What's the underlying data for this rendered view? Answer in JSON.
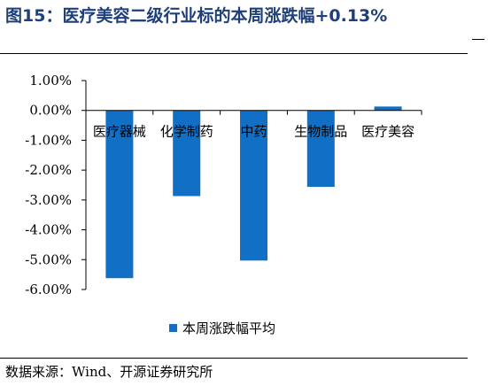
{
  "header": {
    "title": "图15：医疗美容二级行业标的本周涨跌幅+0.13%"
  },
  "footer": {
    "source": "数据来源：Wind、开源证券研究所"
  },
  "chart_data": {
    "type": "bar",
    "categories": [
      "医疗器械",
      "化学制药",
      "中药",
      "生物制品",
      "医疗美容"
    ],
    "series": [
      {
        "name": "本周涨跌幅平均",
        "values": [
          -5.62,
          -2.87,
          -5.03,
          -2.56,
          0.13
        ]
      }
    ],
    "ylim": [
      -6.0,
      1.0
    ],
    "yticks": [
      "1.00%",
      "0.00%",
      "-1.00%",
      "-2.00%",
      "-3.00%",
      "-4.00%",
      "-5.00%",
      "-6.00%"
    ],
    "ytick_values": [
      1,
      0,
      -1,
      -2,
      -3,
      -4,
      -5,
      -6
    ],
    "legend_position": "bottom-center",
    "grid": false,
    "bar_color": "#1170c6"
  }
}
